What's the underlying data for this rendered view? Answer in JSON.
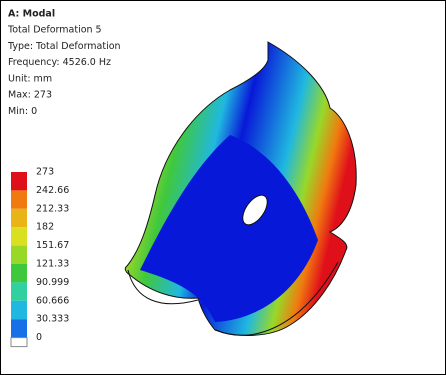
{
  "header": {
    "title": "A: Modal",
    "lines": [
      "Total Deformation 5",
      "Type: Total Deformation",
      "Frequency: 4526.0 Hz",
      "Unit: mm",
      "Max: 273",
      "Min: 0"
    ]
  },
  "legend": {
    "labels": [
      "273",
      "242.66",
      "212.33",
      "182",
      "151.67",
      "121.33",
      "90.999",
      "60.666",
      "30.333",
      "0"
    ],
    "colors": [
      "#e0101a",
      "#f07a10",
      "#e8b418",
      "#d8e020",
      "#98d828",
      "#40c83c",
      "#30d0a0",
      "#20b8e0",
      "#1870e8",
      "#0818d8"
    ]
  }
}
